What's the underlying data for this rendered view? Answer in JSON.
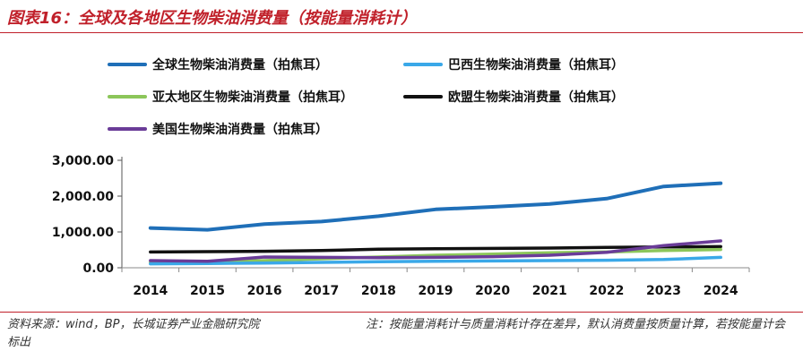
{
  "figure": {
    "title": "图表16：全球及各地区生物柴油消费量（按能量消耗计）",
    "footer": {
      "source": "资料来源：wind，BP，长城证券产业金融研究院",
      "note": "注：按能量消耗计与质量消耗计存在差异，默认消费量按质量计算，若按能量计会标出"
    }
  },
  "chart_data": {
    "type": "line",
    "title": "",
    "xlabel": "",
    "ylabel": "",
    "categories": [
      "2014",
      "2015",
      "2016",
      "2017",
      "2018",
      "2019",
      "2020",
      "2021",
      "2022",
      "2023",
      "2024"
    ],
    "ylim": [
      0,
      3000
    ],
    "yticks": [
      "0.00",
      "1,000.00",
      "2,000.00",
      "3,000.00"
    ],
    "legend_position": "top",
    "series": [
      {
        "name": "全球生物柴油消费量（拍焦耳）",
        "color": "#1f6fb8",
        "values": [
          1110,
          1060,
          1220,
          1290,
          1440,
          1630,
          1700,
          1780,
          1930,
          2270,
          2360
        ]
      },
      {
        "name": "巴西生物柴油消费量（拍焦耳）",
        "color": "#3aa8e8",
        "values": [
          110,
          120,
          130,
          150,
          170,
          180,
          190,
          200,
          210,
          230,
          290
        ]
      },
      {
        "name": "亚太地区生物柴油消费量（拍焦耳）",
        "color": "#8cc65a",
        "values": [
          150,
          170,
          200,
          250,
          300,
          350,
          380,
          420,
          440,
          480,
          510
        ]
      },
      {
        "name": "欧盟生物柴油消费量（拍焦耳）",
        "color": "#111111",
        "values": [
          440,
          450,
          460,
          480,
          520,
          530,
          540,
          550,
          570,
          580,
          590
        ]
      },
      {
        "name": "美国生物柴油消费量（拍焦耳）",
        "color": "#6a3c98",
        "values": [
          200,
          180,
          300,
          290,
          280,
          290,
          310,
          350,
          430,
          620,
          750
        ]
      }
    ]
  }
}
